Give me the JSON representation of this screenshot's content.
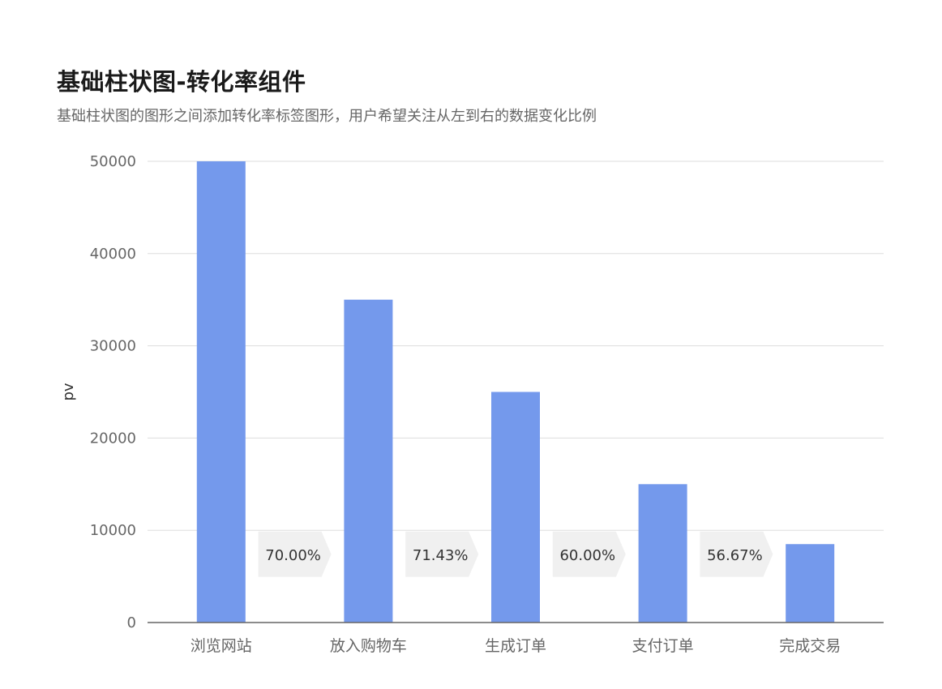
{
  "chart_data": {
    "type": "bar",
    "title": "基础柱状图-转化率组件",
    "subtitle": "基础柱状图的图形之间添加转化率标签图形，用户希望关注从左到右的数据变化比例",
    "ylabel": "pv",
    "xlabel": "",
    "ylim": [
      0,
      50000
    ],
    "yticks": [
      0,
      10000,
      20000,
      30000,
      40000,
      50000
    ],
    "grid": true,
    "categories": [
      "浏览网站",
      "放入购物车",
      "生成订单",
      "支付订单",
      "完成交易"
    ],
    "values": [
      50000,
      35000,
      25000,
      15000,
      8500
    ],
    "conversion_rates": [
      "70.00%",
      "71.43%",
      "60.00%",
      "56.67%"
    ],
    "bar_color": "#7499ec",
    "grid_color": "#dddddd",
    "rate_bg_color": "#f0f0f0"
  }
}
